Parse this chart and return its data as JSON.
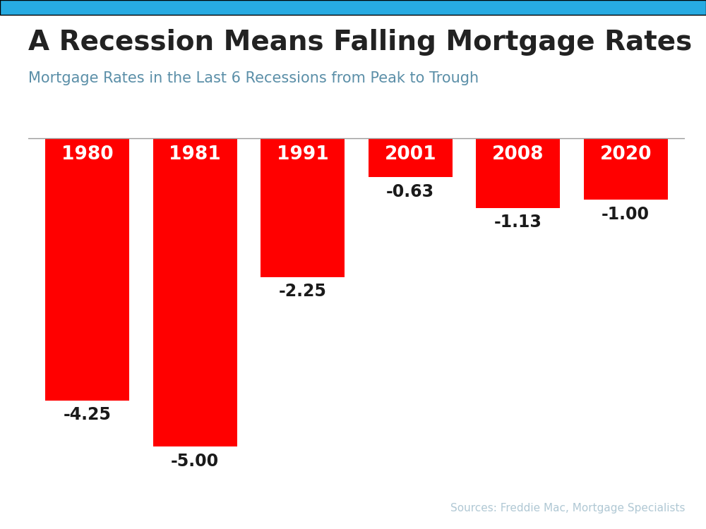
{
  "title": "A Recession Means Falling Mortgage Rates",
  "subtitle": "Mortgage Rates in the Last 6 Recessions from Peak to Trough",
  "source": "Sources: Freddie Mac, Mortgage Specialists",
  "categories": [
    "1980",
    "1981",
    "1991",
    "2001",
    "2008",
    "2020"
  ],
  "values": [
    -4.25,
    -5.0,
    -2.25,
    -0.63,
    -1.13,
    -1.0
  ],
  "bar_color": "#ff0000",
  "label_color_inside": "#ffffff",
  "label_color_outside": "#1a1a1a",
  "title_color": "#222222",
  "subtitle_color": "#5b8fa8",
  "source_color": "#b0c8d4",
  "top_bar_color": "#27abe2",
  "background_color": "#ffffff",
  "ylim": [
    -5.65,
    0.35
  ],
  "title_fontsize": 28,
  "subtitle_fontsize": 15,
  "source_fontsize": 11,
  "year_fontsize": 19,
  "value_outside_fontsize": 17
}
